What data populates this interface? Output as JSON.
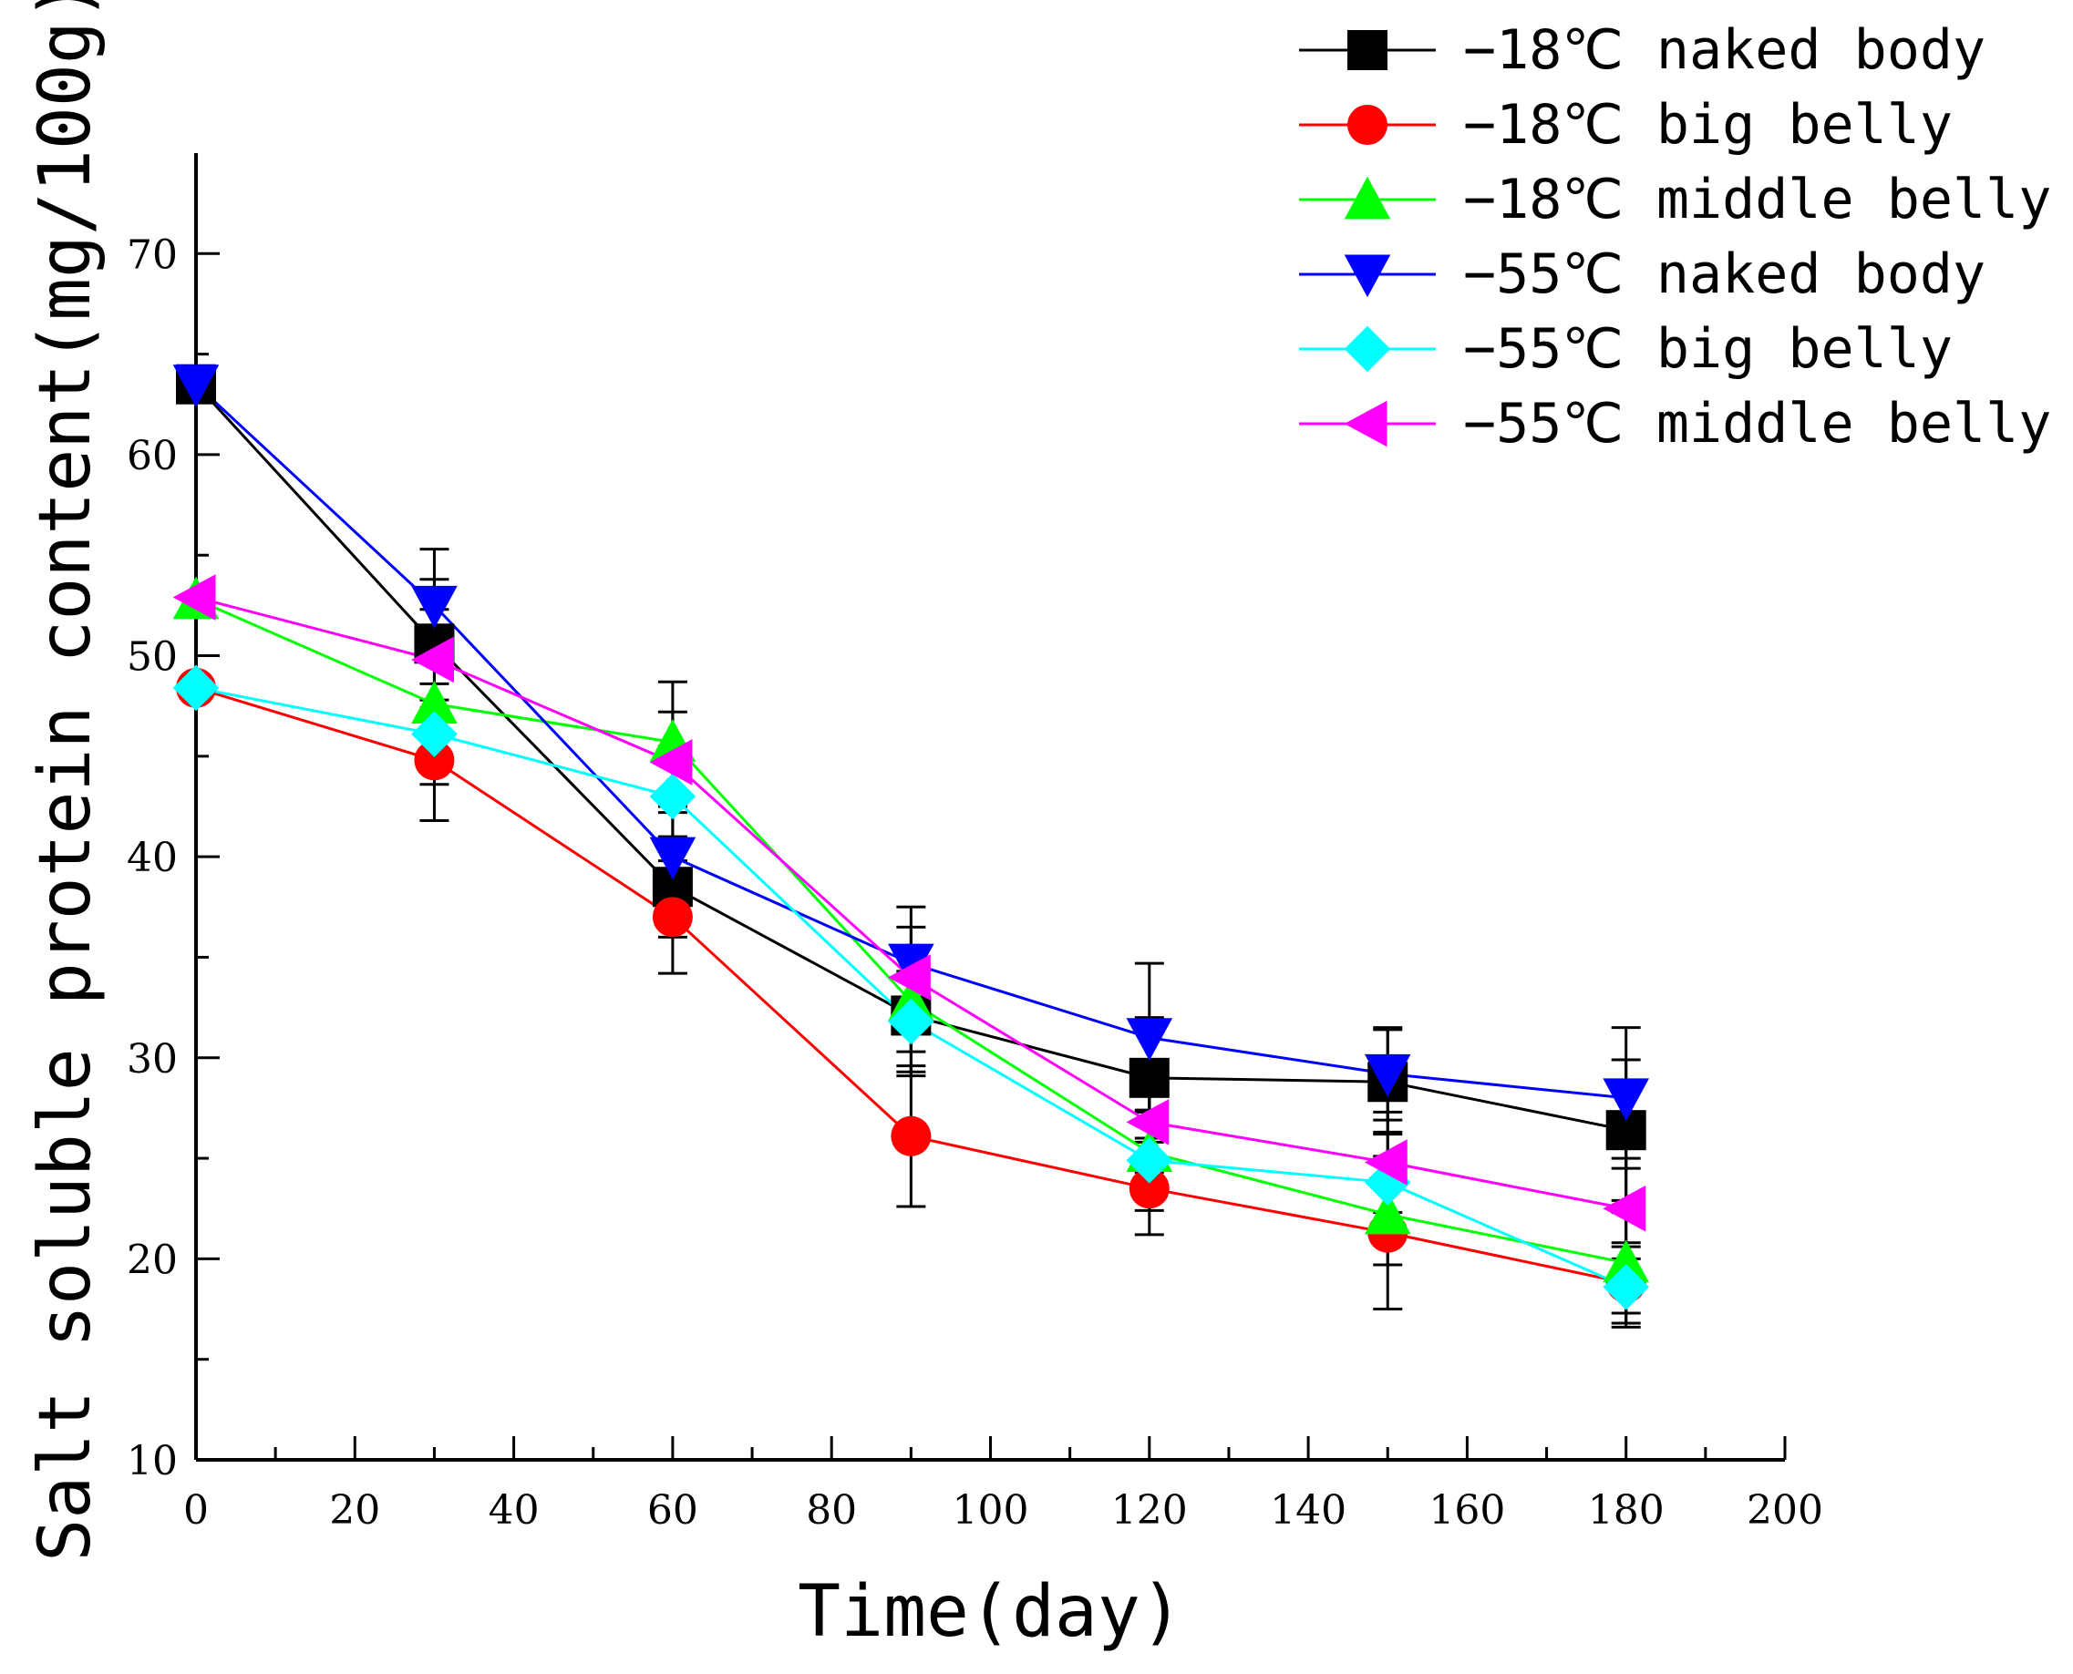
{
  "chart_data": {
    "type": "line",
    "xlabel": "Time(day)",
    "ylabel": "Salt soluble protein content(mg/100g)",
    "xlim": [
      0,
      200
    ],
    "ylim": [
      10,
      75
    ],
    "xticks": [
      0,
      20,
      40,
      60,
      80,
      100,
      120,
      140,
      160,
      180,
      200
    ],
    "yticks": [
      10,
      20,
      30,
      40,
      50,
      60,
      70
    ],
    "x": [
      0,
      30,
      60,
      90,
      120,
      150,
      180
    ],
    "legend_position": "top-right",
    "series": [
      {
        "name": "−18℃ naked body",
        "color": "#000000",
        "marker": "square",
        "values": [
          63.5,
          50.6,
          38.5,
          32.1,
          29.0,
          28.8,
          26.4
        ],
        "errors": [
          0,
          3.2,
          2.5,
          3.0,
          3.0,
          2.6,
          3.5
        ]
      },
      {
        "name": "−18℃ big belly",
        "color": "#ff0000",
        "marker": "circle",
        "values": [
          48.4,
          44.8,
          37.0,
          26.1,
          23.5,
          21.3,
          18.8
        ],
        "errors": [
          0,
          3.0,
          2.8,
          3.5,
          2.3,
          3.8,
          2.0
        ]
      },
      {
        "name": "−18℃ middle belly",
        "color": "#00ff00",
        "marker": "triangle-up",
        "values": [
          52.8,
          47.6,
          45.7,
          32.8,
          25.3,
          22.2,
          19.8
        ],
        "errors": [
          0,
          2.5,
          3.0,
          2.5,
          2.0,
          2.5,
          2.5
        ]
      },
      {
        "name": "−55℃ naked body",
        "color": "#0000ff",
        "marker": "triangle-down",
        "values": [
          63.5,
          52.5,
          40.0,
          34.7,
          31.0,
          29.2,
          28.0
        ],
        "errors": [
          0,
          2.8,
          2.5,
          2.8,
          3.7,
          2.3,
          3.5
        ]
      },
      {
        "name": "−55℃ big belly",
        "color": "#00ffff",
        "marker": "diamond",
        "values": [
          48.4,
          46.1,
          43.0,
          31.8,
          24.9,
          23.8,
          18.6
        ],
        "errors": [
          0,
          2.5,
          2.5,
          2.5,
          2.5,
          2.5,
          2.0
        ]
      },
      {
        "name": "−55℃ middle belly",
        "color": "#ff00ff",
        "marker": "triangle-left",
        "values": [
          52.9,
          49.8,
          44.7,
          34.0,
          26.8,
          24.8,
          22.5
        ],
        "errors": [
          0,
          2.5,
          2.5,
          2.5,
          2.5,
          2.5,
          2.5
        ]
      }
    ]
  }
}
